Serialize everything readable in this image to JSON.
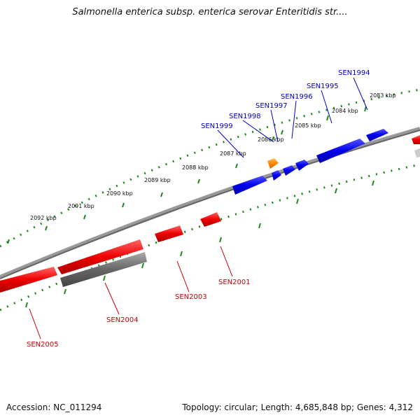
{
  "title": "Salmonella enterica subsp. enterica serovar Enteritidis str....",
  "footer": {
    "accession": "Accession: NC_011294",
    "stats": "Topology: circular; Length: 4,685,848 bp; Genes: 4,312"
  },
  "colors": {
    "forward_gene": "#0000ee",
    "reverse_gene": "#ee0000",
    "rna_gene": "#ff8800",
    "pseudo_gene": "#666666",
    "backbone": "#888888",
    "tick": "#1a8a1a",
    "label_forward": "#0000cc",
    "label_reverse": "#cc0000"
  },
  "scale_labels": [
    "2083 kbp",
    "2084 kbp",
    "2085 kbp",
    "2086 kbp",
    "2087 kbp",
    "2088 kbp",
    "2089 kbp",
    "2090 kbp",
    "2091 kbp",
    "2092 kbp"
  ],
  "forward_genes": [
    "SEN1994",
    "SEN1995",
    "SEN1996",
    "SEN1997",
    "SEN1998",
    "SEN1999"
  ],
  "reverse_genes": [
    "SEN2001",
    "SEN2003",
    "SEN2004",
    "SEN2005"
  ]
}
